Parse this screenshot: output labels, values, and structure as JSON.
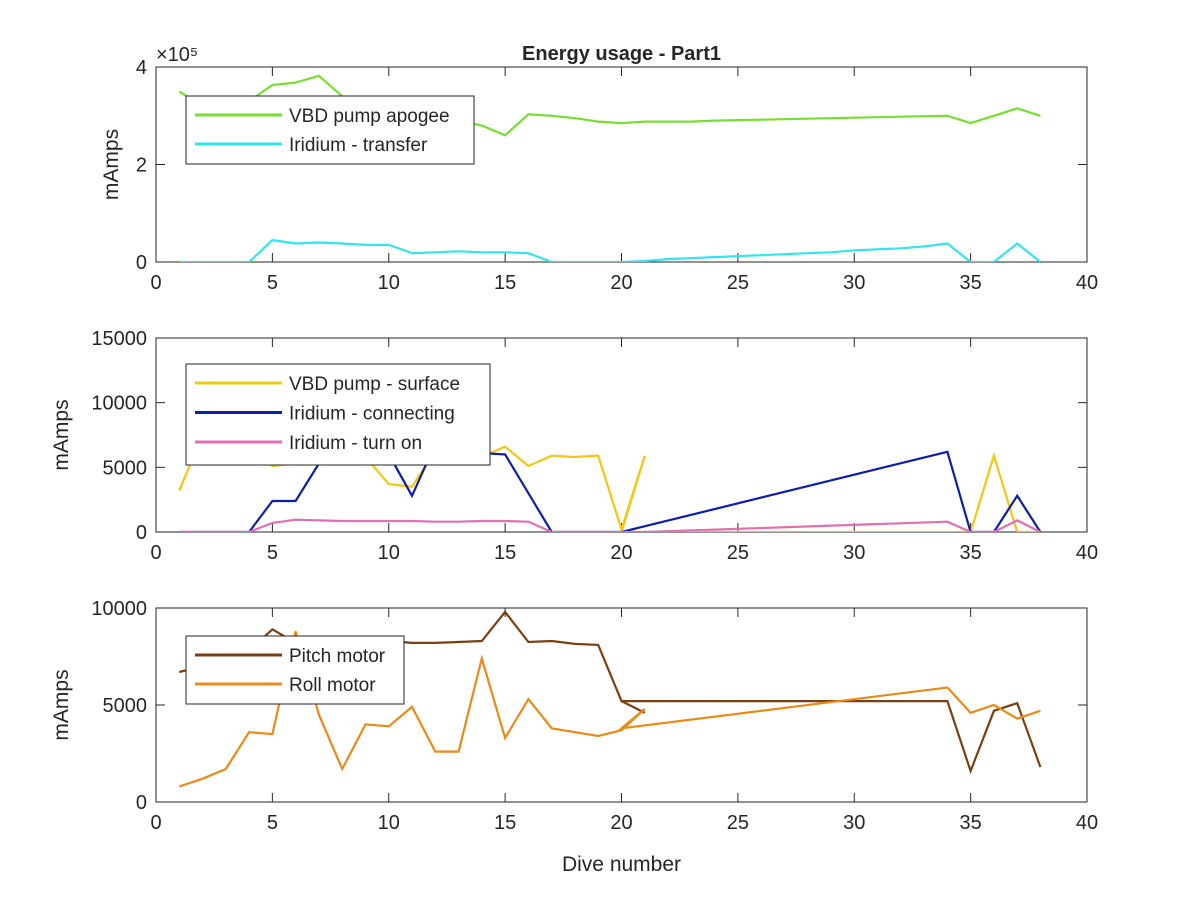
{
  "chart_data": [
    {
      "type": "line",
      "title": "Energy usage - Part1",
      "ylabel": "mAmps",
      "xlabel": "",
      "xlim": [
        0,
        40
      ],
      "ylim": [
        0,
        4
      ],
      "y_exponent_label": "×10⁵",
      "xticks": [
        "0",
        "5",
        "10",
        "15",
        "20",
        "25",
        "30",
        "35",
        "40"
      ],
      "yticks": [
        {
          "value": 0,
          "label": "0"
        },
        {
          "value": 2,
          "label": "2"
        },
        {
          "value": 4,
          "label": "4"
        }
      ],
      "legend_placement": "top-left",
      "series": [
        {
          "name": "VBD pump apogee",
          "color": "#77dd33",
          "x": [
            1,
            2,
            3,
            4,
            5,
            6,
            7,
            8,
            9,
            10,
            11,
            12,
            13,
            14,
            15,
            16,
            17,
            18,
            19,
            20,
            21,
            22,
            23,
            24,
            25,
            26,
            27,
            28,
            29,
            30,
            31,
            32,
            33,
            34,
            35,
            36,
            37,
            38
          ],
          "y": [
            3.5,
            3.2,
            3.35,
            3.3,
            3.63,
            3.68,
            3.82,
            3.4,
            3.05,
            3.0,
            2.95,
            2.9,
            2.9,
            2.8,
            2.6,
            3.03,
            3.0,
            2.95,
            2.88,
            2.85,
            2.88,
            2.88,
            2.88,
            2.9,
            2.91,
            2.92,
            2.93,
            2.94,
            2.95,
            2.96,
            2.97,
            2.98,
            2.99,
            3.0,
            2.85,
            3.0,
            3.15,
            3.0
          ]
        },
        {
          "name": "Iridium - transfer",
          "color": "#33e4ee",
          "x": [
            1,
            2,
            3,
            4,
            5,
            6,
            7,
            8,
            9,
            10,
            11,
            12,
            13,
            14,
            15,
            16,
            17,
            18,
            19,
            20,
            21,
            22,
            23,
            24,
            25,
            26,
            27,
            28,
            29,
            30,
            31,
            32,
            33,
            34,
            35,
            36,
            37,
            38
          ],
          "y": [
            0.0,
            0.0,
            0.0,
            0.0,
            0.45,
            0.38,
            0.4,
            0.38,
            0.35,
            0.35,
            0.18,
            0.2,
            0.22,
            0.2,
            0.2,
            0.18,
            0.0,
            0.0,
            0.0,
            0.0,
            0.02,
            0.06,
            0.08,
            0.1,
            0.12,
            0.14,
            0.16,
            0.18,
            0.2,
            0.24,
            0.26,
            0.28,
            0.32,
            0.38,
            0.0,
            0.0,
            0.38,
            0.0
          ]
        }
      ]
    },
    {
      "type": "line",
      "title": "",
      "ylabel": "mAmps",
      "xlabel": "",
      "xlim": [
        0,
        40
      ],
      "ylim": [
        0,
        15000
      ],
      "xticks": [
        "0",
        "5",
        "10",
        "15",
        "20",
        "25",
        "30",
        "35",
        "40"
      ],
      "yticks": [
        {
          "value": 0,
          "label": "0"
        },
        {
          "value": 5000,
          "label": "5000"
        },
        {
          "value": 10000,
          "label": "10000"
        },
        {
          "value": 15000,
          "label": "15000"
        }
      ],
      "legend_placement": "top-left",
      "series": [
        {
          "name": "VBD pump - surface",
          "color": "#f2c712",
          "x": [
            1,
            2,
            3,
            4,
            5,
            6,
            7,
            8,
            9,
            10,
            11,
            12,
            13,
            14,
            15,
            16,
            17,
            18,
            19,
            20,
            21,
            20,
            34,
            35,
            36,
            37,
            38
          ],
          "y": [
            3200,
            7500,
            7200,
            6500,
            5100,
            5300,
            5300,
            5600,
            5800,
            3700,
            3500,
            6300,
            6000,
            5800,
            6600,
            5100,
            5900,
            5800,
            5900,
            200,
            5900,
            0,
            0,
            0,
            5900,
            0,
            0
          ]
        },
        {
          "name": "Iridium - connecting",
          "color": "#0d1ea8",
          "x": [
            1,
            2,
            3,
            4,
            5,
            6,
            7,
            8,
            9,
            10,
            11,
            12,
            13,
            14,
            15,
            16,
            17,
            18,
            19,
            20,
            34,
            35,
            36,
            37,
            38
          ],
          "y": [
            0,
            0,
            0,
            0,
            2400,
            2400,
            5300,
            7200,
            7500,
            6000,
            2800,
            6800,
            6500,
            6100,
            6000,
            3000,
            0,
            0,
            0,
            0,
            6200,
            0,
            0,
            2800,
            0
          ]
        },
        {
          "name": "Iridium - turn on",
          "color": "#e070b0",
          "x": [
            1,
            2,
            3,
            4,
            5,
            6,
            7,
            8,
            9,
            10,
            11,
            12,
            13,
            14,
            15,
            16,
            17,
            18,
            19,
            20,
            21,
            34,
            35,
            36,
            37,
            38
          ],
          "y": [
            0,
            0,
            0,
            0,
            700,
            950,
            900,
            850,
            850,
            850,
            850,
            800,
            800,
            850,
            850,
            800,
            0,
            0,
            0,
            0,
            0,
            800,
            0,
            0,
            900,
            0
          ]
        }
      ]
    },
    {
      "type": "line",
      "title": "",
      "ylabel": "mAmps",
      "xlabel": "Dive number",
      "xlim": [
        0,
        40
      ],
      "ylim": [
        0,
        10000
      ],
      "xticks": [
        "0",
        "5",
        "10",
        "15",
        "20",
        "25",
        "30",
        "35",
        "40"
      ],
      "yticks": [
        {
          "value": 0,
          "label": "0"
        },
        {
          "value": 5000,
          "label": "5000"
        },
        {
          "value": 10000,
          "label": "10000"
        }
      ],
      "legend_placement": "top-left",
      "series": [
        {
          "name": "Pitch motor",
          "color": "#7a4012",
          "x": [
            1,
            2,
            3,
            4,
            5,
            6,
            7,
            8,
            9,
            10,
            11,
            12,
            13,
            14,
            15,
            16,
            17,
            18,
            19,
            20,
            21,
            20,
            34,
            35,
            36,
            37,
            38
          ],
          "y": [
            6700,
            7000,
            7400,
            7800,
            8900,
            8200,
            8300,
            8400,
            8300,
            8300,
            8200,
            8200,
            8250,
            8300,
            9800,
            8250,
            8300,
            8150,
            8100,
            5200,
            4600,
            5200,
            5200,
            1600,
            4700,
            5100,
            1800
          ]
        },
        {
          "name": "Roll motor",
          "color": "#e98a1a",
          "x": [
            1,
            2,
            3,
            4,
            5,
            6,
            7,
            8,
            9,
            10,
            11,
            12,
            13,
            14,
            15,
            16,
            17,
            18,
            19,
            20,
            21,
            20,
            34,
            35,
            36,
            37,
            38
          ],
          "y": [
            800,
            1200,
            1700,
            3600,
            3500,
            8800,
            4500,
            1700,
            4000,
            3900,
            4900,
            2600,
            2600,
            7400,
            3300,
            5300,
            3800,
            3600,
            3400,
            3700,
            4800,
            3800,
            5900,
            4600,
            5000,
            4300,
            4700
          ]
        }
      ]
    }
  ]
}
